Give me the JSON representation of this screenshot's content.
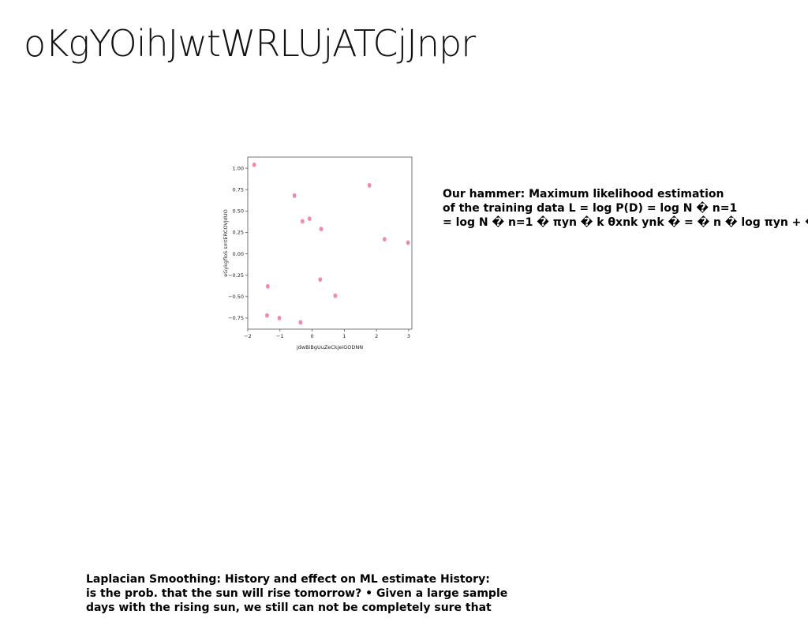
{
  "title": "oKgYOihJwtWRLUjATCjJnpr",
  "right_text": {
    "lines": [
      "Our hammer: Maximum likelihood estimation",
      "of the training data L = log P(D) = log N � n=1",
      "= log N � n=1 � πyn � k θxnk ynk � = � n � log πyn + �"
    ]
  },
  "bottom_text": {
    "lines": [
      "Laplacian Smoothing: History and effect on ML estimate History:",
      "is the prob. that the sun will rise tomorrow? • Given a large sample",
      "days with the rising sun, we still can not be completely sure that"
    ]
  },
  "chart_data": {
    "type": "scatter",
    "xlabel": "jdwBiBgUuZeCkjeiGODNN",
    "ylabel": "eGykgfloS smtERCOVJdUO",
    "xlim": [
      -2.0,
      3.1
    ],
    "ylim": [
      -0.88,
      1.13
    ],
    "xticks": [
      -2,
      -1,
      0,
      1,
      2,
      3
    ],
    "xtick_labels": [
      "−2",
      "−1",
      "0",
      "1",
      "2",
      "3"
    ],
    "yticks": [
      1.0,
      0.75,
      0.5,
      0.25,
      0.0,
      -0.25,
      -0.5,
      -0.75
    ],
    "ytick_labels": [
      "1.00",
      "0.75",
      "0.50",
      "0.25",
      "0.00",
      "−0.25",
      "−0.50",
      "−0.75"
    ],
    "grid": false,
    "marker_color": "#f08aa6",
    "points": [
      {
        "x": -1.8,
        "y": 1.04
      },
      {
        "x": -0.55,
        "y": 0.68
      },
      {
        "x": -0.3,
        "y": 0.38
      },
      {
        "x": -0.08,
        "y": 0.41
      },
      {
        "x": 0.28,
        "y": 0.29
      },
      {
        "x": 1.78,
        "y": 0.8
      },
      {
        "x": 2.25,
        "y": 0.17
      },
      {
        "x": 2.98,
        "y": 0.13
      },
      {
        "x": -1.38,
        "y": -0.38
      },
      {
        "x": 0.25,
        "y": -0.3
      },
      {
        "x": 0.72,
        "y": -0.49
      },
      {
        "x": -1.4,
        "y": -0.72
      },
      {
        "x": -1.02,
        "y": -0.75
      },
      {
        "x": -0.36,
        "y": -0.8
      }
    ]
  }
}
